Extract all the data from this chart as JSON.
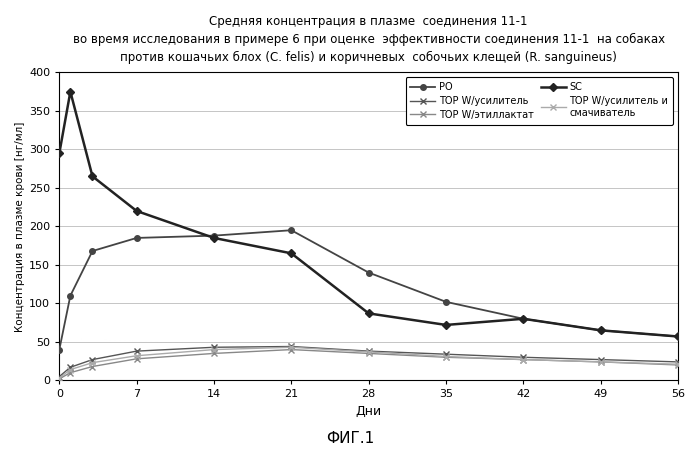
{
  "title_line1": "Средняя концентрация в плазме  соединения 11-1",
  "title_line2": "во время исследования в примере 6 при оценке  эффективности соединения 11-1  на собаках",
  "title_line3": "против кошачьих блох (C. felis) и коричневых  собочьих клещей (R. sanguineus)",
  "xlabel": "Дни",
  "ylabel": "Концентрация в плазме крови [нг/мл]",
  "fig_label": "ФИГ.1",
  "xlim": [
    0,
    56
  ],
  "ylim": [
    0,
    400
  ],
  "xticks": [
    0,
    7,
    14,
    21,
    28,
    35,
    42,
    49,
    56
  ],
  "yticks": [
    0,
    50,
    100,
    150,
    200,
    250,
    300,
    350,
    400
  ],
  "series": [
    {
      "name": "PO",
      "x": [
        0,
        1,
        3,
        7,
        14,
        21,
        28,
        35,
        42,
        49,
        56
      ],
      "y": [
        40,
        110,
        168,
        185,
        188,
        195,
        140,
        102,
        80,
        65,
        57
      ],
      "color": "#444444",
      "linestyle": "-",
      "marker": "o",
      "linewidth": 1.3,
      "markersize": 4,
      "markerfacecolor": "#444444"
    },
    {
      "name": "SC",
      "x": [
        0,
        1,
        3,
        7,
        14,
        21,
        28,
        35,
        42,
        49,
        56
      ],
      "y": [
        295,
        375,
        265,
        220,
        185,
        165,
        87,
        72,
        80,
        65,
        57
      ],
      "color": "#222222",
      "linestyle": "-",
      "marker": "D",
      "linewidth": 1.8,
      "markersize": 4,
      "markerfacecolor": "#222222"
    },
    {
      "name": "TOP W/усилитель",
      "x": [
        0,
        1,
        3,
        7,
        14,
        21,
        28,
        35,
        42,
        49,
        56
      ],
      "y": [
        5,
        17,
        27,
        38,
        43,
        44,
        38,
        34,
        30,
        27,
        24
      ],
      "color": "#555555",
      "linestyle": "-",
      "marker": "x",
      "linewidth": 1.0,
      "markersize": 4,
      "markerfacecolor": "#555555"
    },
    {
      "name": "TOP W/этиллактат",
      "x": [
        0,
        1,
        3,
        7,
        14,
        21,
        28,
        35,
        42,
        49,
        56
      ],
      "y": [
        2,
        10,
        18,
        28,
        35,
        40,
        35,
        30,
        27,
        24,
        20
      ],
      "color": "#888888",
      "linestyle": "-",
      "marker": "x",
      "linewidth": 1.0,
      "markersize": 4,
      "markerfacecolor": "#888888"
    },
    {
      "name": "TOP W/усилитель и\nсмачиватель",
      "x": [
        0,
        1,
        3,
        7,
        14,
        21,
        28,
        35,
        42,
        49,
        56
      ],
      "y": [
        3,
        14,
        23,
        32,
        40,
        43,
        37,
        31,
        27,
        24,
        21
      ],
      "color": "#aaaaaa",
      "linestyle": "-",
      "marker": "x",
      "linewidth": 1.0,
      "markersize": 4,
      "markerfacecolor": "#aaaaaa"
    }
  ],
  "background_color": "#ffffff",
  "grid_color": "#bbbbbb"
}
